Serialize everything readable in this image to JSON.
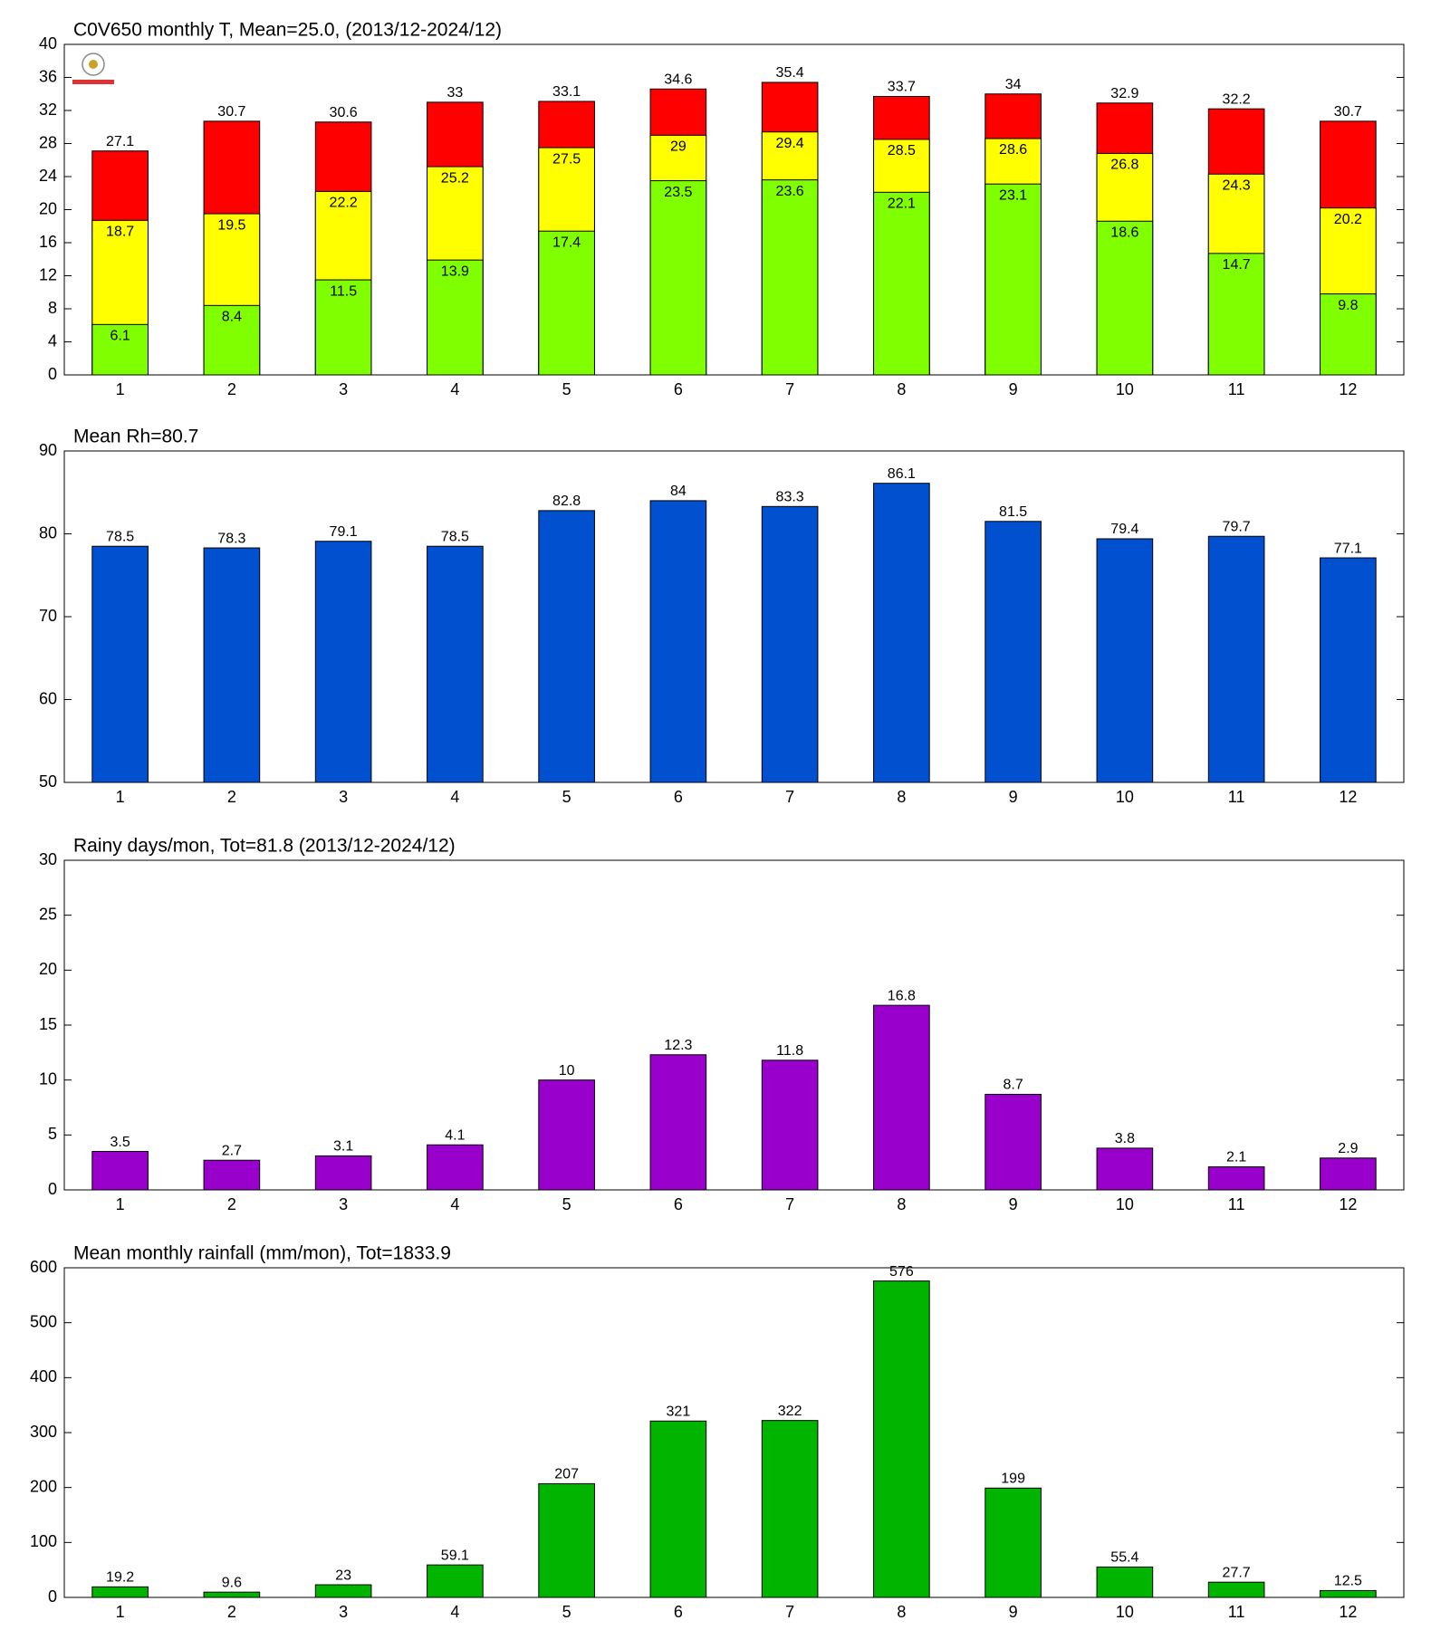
{
  "chart_data": [
    {
      "type": "bar",
      "title": "C0V650 monthly T, Mean=25.0, (2013/12-2024/12)",
      "barmode": "overlay",
      "categories": [
        1,
        2,
        3,
        4,
        5,
        6,
        7,
        8,
        9,
        10,
        11,
        12
      ],
      "series": [
        {
          "color": "#ff0000",
          "values": [
            27.1,
            30.7,
            30.6,
            33,
            33.1,
            34.6,
            35.4,
            33.7,
            34,
            32.9,
            32.2,
            30.7
          ]
        },
        {
          "color": "#ffff00",
          "values": [
            18.7,
            19.5,
            22.2,
            25.2,
            27.5,
            29,
            29.4,
            28.5,
            28.6,
            26.8,
            24.3,
            20.2
          ]
        },
        {
          "color": "#80ff00",
          "values": [
            6.1,
            8.4,
            11.5,
            13.9,
            17.4,
            23.5,
            23.6,
            22.1,
            23.1,
            18.6,
            14.7,
            9.8
          ]
        }
      ],
      "ylim": [
        0,
        40
      ],
      "yticks": [
        0,
        4,
        8,
        12,
        16,
        20,
        24,
        28,
        32,
        36,
        40
      ]
    },
    {
      "type": "bar",
      "title": "Mean Rh=80.7",
      "categories": [
        1,
        2,
        3,
        4,
        5,
        6,
        7,
        8,
        9,
        10,
        11,
        12
      ],
      "series": [
        {
          "color": "#0050d0",
          "values": [
            78.5,
            78.3,
            79.1,
            78.5,
            82.8,
            84,
            83.3,
            86.1,
            81.5,
            79.4,
            79.7,
            77.1
          ]
        }
      ],
      "ylim": [
        50,
        90
      ],
      "yticks": [
        50,
        60,
        70,
        80,
        90
      ]
    },
    {
      "type": "bar",
      "title": "Rainy days/mon, Tot=81.8 (2013/12-2024/12)",
      "categories": [
        1,
        2,
        3,
        4,
        5,
        6,
        7,
        8,
        9,
        10,
        11,
        12
      ],
      "series": [
        {
          "color": "#9900cc",
          "values": [
            3.5,
            2.7,
            3.1,
            4.1,
            10,
            12.3,
            11.8,
            16.8,
            8.7,
            3.8,
            2.1,
            2.9
          ]
        }
      ],
      "ylim": [
        0,
        30
      ],
      "yticks": [
        0,
        5,
        10,
        15,
        20,
        25,
        30
      ]
    },
    {
      "type": "bar",
      "title": "Mean monthly rainfall (mm/mon), Tot=1833.9",
      "categories": [
        1,
        2,
        3,
        4,
        5,
        6,
        7,
        8,
        9,
        10,
        11,
        12
      ],
      "series": [
        {
          "color": "#00b400",
          "values": [
            19.2,
            9.6,
            23,
            59.1,
            207,
            321,
            322,
            576,
            199,
            55.4,
            27.7,
            12.5
          ]
        }
      ],
      "ylim": [
        0,
        600
      ],
      "yticks": [
        0,
        100,
        200,
        300,
        400,
        500,
        600
      ]
    }
  ]
}
